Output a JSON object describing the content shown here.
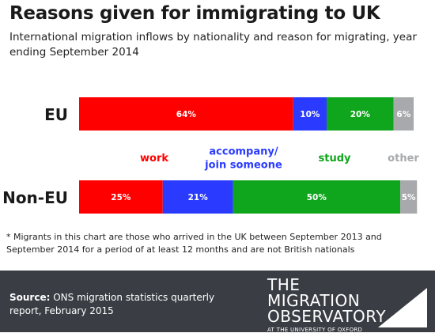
{
  "title": "Reasons given for immigrating to UK",
  "subtitle": "International migration inflows by nationality and reason for migrating, year ending September 2014",
  "chart_data": {
    "type": "bar",
    "orientation": "horizontal",
    "stacked": true,
    "percent": true,
    "categories": [
      "EU",
      "Non-EU"
    ],
    "series": [
      {
        "name": "work",
        "color": "#ff0000",
        "values": [
          64,
          25
        ],
        "labels": [
          "64%",
          "25%"
        ]
      },
      {
        "name": "accompany/ join someone",
        "color": "#2a3bff",
        "values": [
          10,
          21
        ],
        "labels": [
          "10%",
          "21%"
        ]
      },
      {
        "name": "study",
        "color": "#0fa51c",
        "values": [
          20,
          50
        ],
        "labels": [
          "20%",
          "50%"
        ]
      },
      {
        "name": "other",
        "color": "#a7a9ac",
        "values": [
          6,
          5
        ],
        "labels": [
          "6%",
          "5%"
        ]
      }
    ],
    "legend_lines": [
      [
        "work"
      ],
      [
        "accompany/",
        "join someone"
      ],
      [
        "study"
      ],
      [
        "other"
      ]
    ],
    "legend_placement": "between bars",
    "grid": false
  },
  "footnote": "* Migrants in this chart are those who arrived in the UK between September 2013 and September 2014 for a period of at least 12 months and are not British nationals",
  "footer": {
    "source_label": "Source:",
    "source_text": "ONS migration statistics quarterly report, February 2015",
    "logo": {
      "line1": "THE",
      "line2": "MIGRATION",
      "line3": "OBSERVATORY",
      "sub": "AT THE UNIVERSITY OF OXFORD"
    }
  }
}
